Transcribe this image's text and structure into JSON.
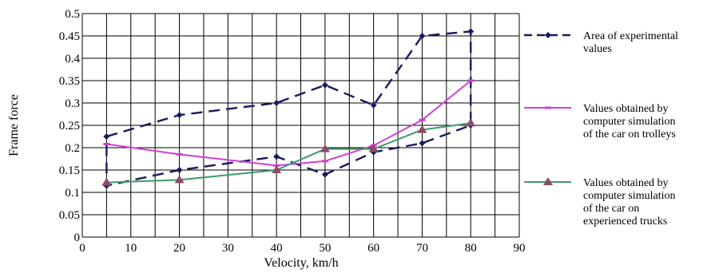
{
  "chart_data": {
    "type": "line",
    "xlabel": "Velocity, km/h",
    "ylabel": "Frame force",
    "xlim": [
      0,
      90
    ],
    "ylim": [
      0,
      0.5
    ],
    "x_ticks": [
      "0",
      "10",
      "20",
      "30",
      "40",
      "50",
      "60",
      "70",
      "80",
      "90"
    ],
    "y_ticks": [
      "0",
      "0.05",
      "0.1",
      "0.15",
      "0.2",
      "0.25",
      "0.3",
      "0.35",
      "0.4",
      "0.45",
      "0.5"
    ],
    "grid": true,
    "legend_position": "right",
    "series": [
      {
        "name": "Area of experimental values",
        "legend_lines": [
          "Area of experimental",
          "values"
        ],
        "color": "#1a1a5e",
        "style": "dashed",
        "marker": "diamond",
        "points": [
          [
            5,
            0.225
          ],
          [
            20,
            0.273
          ],
          [
            40,
            0.3
          ],
          [
            50,
            0.34
          ],
          [
            60,
            0.295
          ],
          [
            70,
            0.45
          ],
          [
            80,
            0.46
          ],
          [
            80,
            0.25
          ],
          [
            70,
            0.21
          ],
          [
            60,
            0.19
          ],
          [
            50,
            0.14
          ],
          [
            40,
            0.18
          ],
          [
            20,
            0.15
          ],
          [
            5,
            0.115
          ],
          [
            5,
            0.225
          ]
        ]
      },
      {
        "name": "Values obtained by computer simulation of the car on trolleys",
        "legend_lines": [
          "Values obtained by",
          "computer simulation",
          "of the car on trolleys"
        ],
        "color": "#d23fd2",
        "style": "solid",
        "marker": "dash",
        "points": [
          [
            5,
            0.208
          ],
          [
            20,
            0.185
          ],
          [
            40,
            0.16
          ],
          [
            50,
            0.17
          ],
          [
            60,
            0.205
          ],
          [
            70,
            0.262
          ],
          [
            80,
            0.35
          ]
        ]
      },
      {
        "name": "Values obtained by computer simulation of the car on experienced trucks",
        "legend_lines": [
          "Values obtained by",
          "computer simulation",
          "of the car on",
          "experienced trucks"
        ],
        "color": "#3d9a6a",
        "marker_color": "#8c4a6a",
        "style": "solid",
        "marker": "triangle",
        "points": [
          [
            5,
            0.122
          ],
          [
            20,
            0.128
          ],
          [
            40,
            0.15
          ],
          [
            50,
            0.197
          ],
          [
            60,
            0.197
          ],
          [
            70,
            0.24
          ],
          [
            80,
            0.255
          ]
        ]
      }
    ]
  }
}
